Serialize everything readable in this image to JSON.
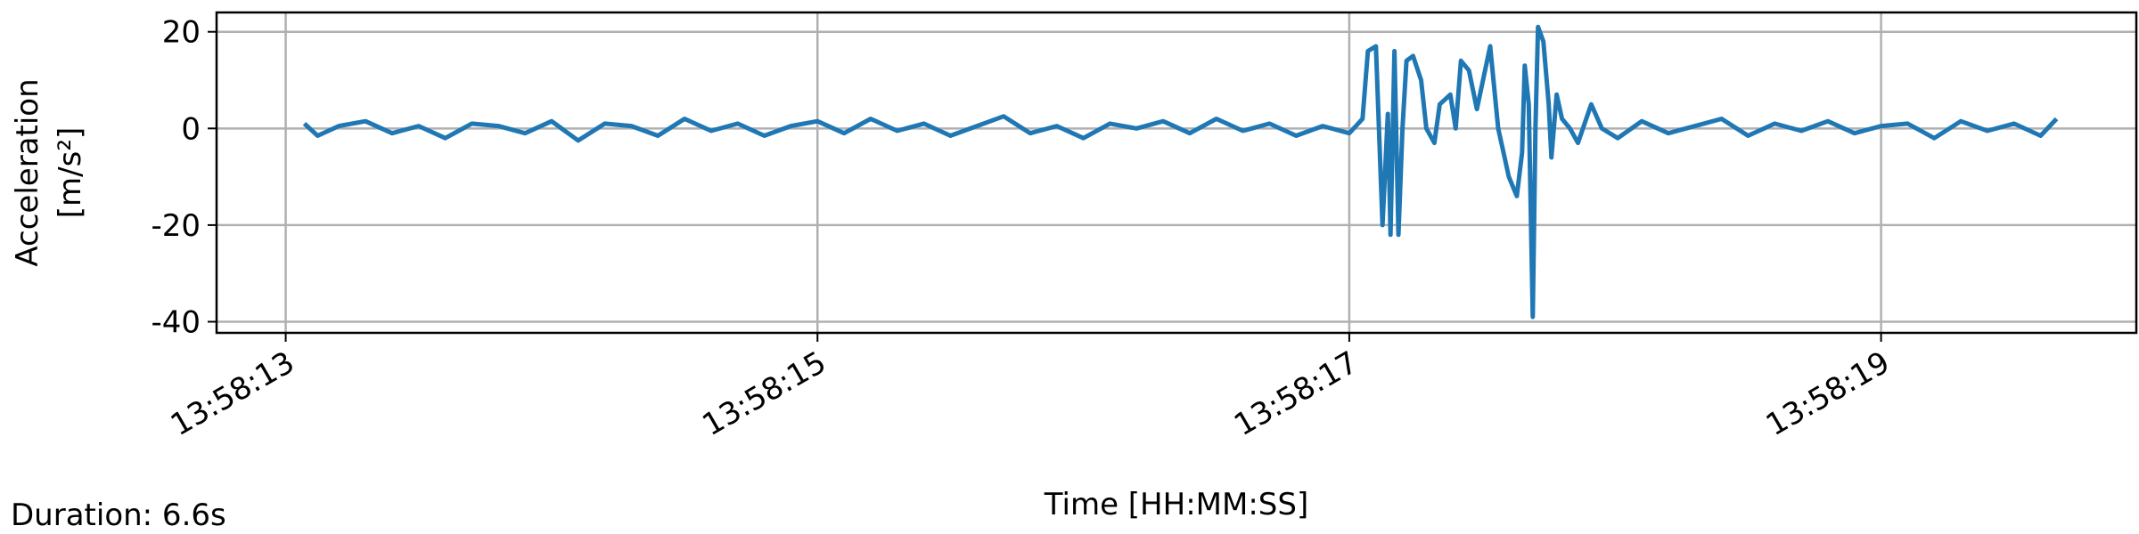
{
  "chart_data": {
    "type": "line",
    "ylabel": [
      "Acceleration",
      "[m/s²]"
    ],
    "xlabel": "Time [HH:MM:SS]",
    "annotation": "Duration: 6.6s",
    "grid": true,
    "xlim": [
      "13:58:12.74",
      "13:58:19.96"
    ],
    "xticks": [
      "13:58:13",
      "13:58:15",
      "13:58:17",
      "13:58:19"
    ],
    "ylim": [
      -42.3,
      24
    ],
    "yticks": [
      20,
      0,
      -20,
      -40
    ],
    "series": [
      {
        "color": "#1f77b4",
        "x": [
          "13:58:13.07",
          "13:58:13.12",
          "13:58:13.2",
          "13:58:13.3",
          "13:58:13.4",
          "13:58:13.5",
          "13:58:13.6",
          "13:58:13.7",
          "13:58:13.8",
          "13:58:13.9",
          "13:58:14.0",
          "13:58:14.1",
          "13:58:14.2",
          "13:58:14.3",
          "13:58:14.4",
          "13:58:14.5",
          "13:58:14.6",
          "13:58:14.7",
          "13:58:14.8",
          "13:58:14.9",
          "13:58:15.0",
          "13:58:15.1",
          "13:58:15.2",
          "13:58:15.3",
          "13:58:15.4",
          "13:58:15.5",
          "13:58:15.6",
          "13:58:15.7",
          "13:58:15.8",
          "13:58:15.9",
          "13:58:16.0",
          "13:58:16.1",
          "13:58:16.2",
          "13:58:16.3",
          "13:58:16.4",
          "13:58:16.5",
          "13:58:16.6",
          "13:58:16.7",
          "13:58:16.8",
          "13:58:16.9",
          "13:58:17.0",
          "13:58:17.05",
          "13:58:17.07",
          "13:58:17.10",
          "13:58:17.105",
          "13:58:17.125",
          "13:58:17.145",
          "13:58:17.155",
          "13:58:17.17",
          "13:58:17.185",
          "13:58:17.2",
          "13:58:17.215",
          "13:58:17.24",
          "13:58:17.27",
          "13:58:17.29",
          "13:58:17.32",
          "13:58:17.34",
          "13:58:17.38",
          "13:58:17.40",
          "13:58:17.42",
          "13:58:17.45",
          "13:58:17.48",
          "13:58:17.53",
          "13:58:17.56",
          "13:58:17.58",
          "13:58:17.60",
          "13:58:17.63",
          "13:58:17.65",
          "13:58:17.66",
          "13:58:17.675",
          "13:58:17.69",
          "13:58:17.70",
          "13:58:17.71",
          "13:58:17.73",
          "13:58:17.75",
          "13:58:17.76",
          "13:58:17.78",
          "13:58:17.80",
          "13:58:17.83",
          "13:58:17.86",
          "13:58:17.91",
          "13:58:17.95",
          "13:58:18.01",
          "13:58:18.1",
          "13:58:18.2",
          "13:58:18.3",
          "13:58:18.4",
          "13:58:18.5",
          "13:58:18.6",
          "13:58:18.7",
          "13:58:18.8",
          "13:58:18.9",
          "13:58:19.0",
          "13:58:19.1",
          "13:58:19.2",
          "13:58:19.3",
          "13:58:19.4",
          "13:58:19.5",
          "13:58:19.6",
          "13:58:19.66"
        ],
        "values": [
          1,
          -1.5,
          0.5,
          1.5,
          -1,
          0.5,
          -2,
          1,
          0.5,
          -1,
          1.5,
          -2.5,
          1,
          0.5,
          -1.5,
          2,
          -0.5,
          1,
          -1.5,
          0.5,
          1.5,
          -1,
          2,
          -0.5,
          1,
          -1.5,
          0.5,
          2.5,
          -1,
          0.5,
          -2,
          1,
          0,
          1.5,
          -1,
          2,
          -0.5,
          1,
          -1.5,
          0.5,
          -1,
          2,
          16,
          17,
          10,
          -20,
          3,
          -22,
          16,
          -22,
          0,
          14,
          15,
          10,
          0,
          -3,
          5,
          7,
          0,
          14,
          12,
          4,
          17,
          0,
          -5,
          -10,
          -14,
          -5,
          13,
          5,
          -39,
          0,
          21,
          18,
          5,
          -6,
          7,
          2,
          0,
          -3,
          5,
          0,
          -2,
          1.5,
          -1,
          0.5,
          2,
          -1.5,
          1,
          -0.5,
          1.5,
          -1,
          0.5,
          1,
          -2,
          1.5,
          -0.5,
          1,
          -1.5,
          2
        ]
      }
    ]
  }
}
